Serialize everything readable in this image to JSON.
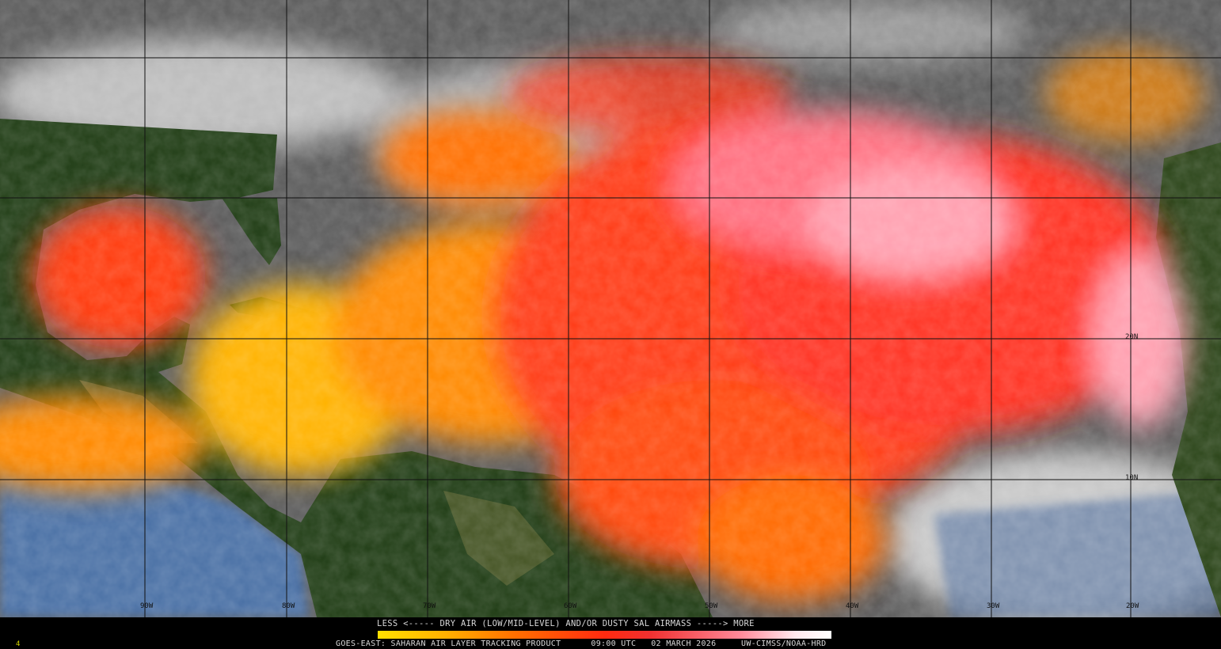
{
  "map": {
    "longitude_labels": [
      "90W",
      "80W",
      "70W",
      "60W",
      "50W",
      "40W",
      "30W",
      "20W"
    ],
    "latitude_labels": [
      "20N",
      "10N"
    ],
    "colors": {
      "ocean_clear": "#4a6fa5",
      "land": "#1e3a12",
      "clouds": "#9a9a9a",
      "sal_low": "#ffe000",
      "sal_mid": "#ff2a10",
      "sal_high": "#ffffff"
    }
  },
  "legend": {
    "title": "LESS <----- DRY AIR (LOW/MID-LEVEL) AND/OR DUSTY SAL AIRMASS -----> MORE",
    "scale_min_label": "LESS",
    "scale_max_label": "MORE"
  },
  "footer": {
    "product": "GOES-EAST: SAHARAN AIR LAYER TRACKING PRODUCT",
    "time": "09:00 UTC",
    "date": "02 MARCH 2026",
    "credit": "UW-CIMSS/NOAA-HRD",
    "frame_number": "4"
  }
}
